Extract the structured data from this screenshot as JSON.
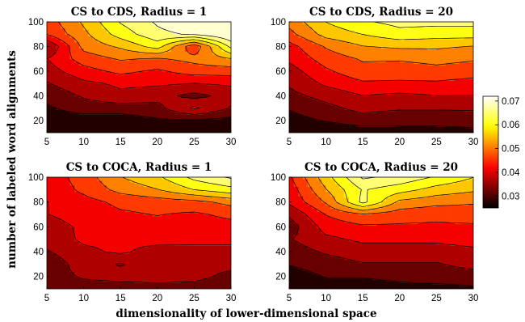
{
  "figure": {
    "xlabel": "dimensionality of lower-dimensional space",
    "ylabel": "number of labeled word alignments"
  },
  "colorbar": {
    "ticks": [
      "0.07",
      "0.06",
      "0.05",
      "0.04",
      "0.03"
    ],
    "tick_values": [
      0.07,
      0.06,
      0.05,
      0.04,
      0.03
    ],
    "range": [
      0.025,
      0.072
    ],
    "colormap": "hot"
  },
  "chart_data": [
    {
      "type": "heatmap",
      "title": "CS to CDS, Radius = 1",
      "x": [
        5,
        10,
        15,
        20,
        25,
        30
      ],
      "y": [
        10,
        20,
        30,
        40,
        50,
        60,
        70,
        80,
        90,
        100
      ],
      "xlim": [
        5,
        30
      ],
      "ylim": [
        10,
        100
      ],
      "xticks": [
        5,
        10,
        15,
        20,
        25,
        30
      ],
      "yticks": [
        20,
        40,
        60,
        80,
        100
      ],
      "z": [
        [
          0.026,
          0.026,
          0.026,
          0.027,
          0.027,
          0.027
        ],
        [
          0.027,
          0.027,
          0.027,
          0.029,
          0.029,
          0.028
        ],
        [
          0.029,
          0.032,
          0.032,
          0.033,
          0.04,
          0.034
        ],
        [
          0.031,
          0.035,
          0.038,
          0.036,
          0.033,
          0.036
        ],
        [
          0.034,
          0.038,
          0.04,
          0.04,
          0.039,
          0.04
        ],
        [
          0.037,
          0.042,
          0.045,
          0.043,
          0.046,
          0.046
        ],
        [
          0.039,
          0.046,
          0.049,
          0.048,
          0.05,
          0.053
        ],
        [
          0.034,
          0.05,
          0.054,
          0.06,
          0.045,
          0.064
        ],
        [
          0.044,
          0.052,
          0.06,
          0.066,
          0.068,
          0.072
        ],
        [
          0.046,
          0.054,
          0.063,
          0.068,
          0.072,
          0.072
        ]
      ]
    },
    {
      "type": "heatmap",
      "title": "CS to CDS, Radius = 20",
      "x": [
        5,
        10,
        15,
        20,
        25,
        30
      ],
      "y": [
        10,
        20,
        30,
        40,
        50,
        60,
        70,
        80,
        90,
        100
      ],
      "xlim": [
        5,
        30
      ],
      "ylim": [
        10,
        100
      ],
      "xticks": [
        5,
        10,
        15,
        20,
        25,
        30
      ],
      "yticks": [
        20,
        40,
        60,
        80,
        100
      ],
      "z": [
        [
          0.026,
          0.026,
          0.027,
          0.028,
          0.028,
          0.028
        ],
        [
          0.028,
          0.03,
          0.032,
          0.031,
          0.031,
          0.032
        ],
        [
          0.03,
          0.033,
          0.036,
          0.035,
          0.035,
          0.035
        ],
        [
          0.033,
          0.036,
          0.039,
          0.038,
          0.039,
          0.039
        ],
        [
          0.035,
          0.04,
          0.043,
          0.043,
          0.043,
          0.042
        ],
        [
          0.037,
          0.043,
          0.047,
          0.046,
          0.047,
          0.046
        ],
        [
          0.04,
          0.046,
          0.049,
          0.049,
          0.05,
          0.049
        ],
        [
          0.042,
          0.049,
          0.053,
          0.054,
          0.054,
          0.053
        ],
        [
          0.047,
          0.055,
          0.058,
          0.061,
          0.06,
          0.06
        ],
        [
          0.05,
          0.058,
          0.062,
          0.064,
          0.064,
          0.064
        ]
      ]
    },
    {
      "type": "heatmap",
      "title": "CS to COCA, Radius = 1",
      "x": [
        5,
        10,
        15,
        20,
        25,
        30
      ],
      "y": [
        10,
        20,
        30,
        40,
        50,
        60,
        70,
        80,
        90,
        100
      ],
      "xlim": [
        5,
        30
      ],
      "ylim": [
        10,
        100
      ],
      "xticks": [
        5,
        10,
        15,
        20,
        25,
        30
      ],
      "yticks": [
        20,
        40,
        60,
        80,
        100
      ],
      "z": [
        [
          0.031,
          0.032,
          0.032,
          0.033,
          0.032,
          0.03
        ],
        [
          0.032,
          0.035,
          0.036,
          0.036,
          0.036,
          0.033
        ],
        [
          0.031,
          0.037,
          0.034,
          0.038,
          0.035,
          0.036
        ],
        [
          0.034,
          0.038,
          0.04,
          0.037,
          0.038,
          0.038
        ],
        [
          0.036,
          0.04,
          0.04,
          0.041,
          0.04,
          0.04
        ],
        [
          0.037,
          0.04,
          0.041,
          0.042,
          0.041,
          0.042
        ],
        [
          0.039,
          0.041,
          0.043,
          0.044,
          0.043,
          0.045
        ],
        [
          0.039,
          0.042,
          0.045,
          0.046,
          0.047,
          0.05
        ],
        [
          0.04,
          0.045,
          0.05,
          0.053,
          0.058,
          0.061
        ],
        [
          0.041,
          0.046,
          0.053,
          0.057,
          0.064,
          0.068
        ]
      ]
    },
    {
      "type": "heatmap",
      "title": "CS to COCA, Radius = 20",
      "x": [
        5,
        10,
        15,
        20,
        25,
        30
      ],
      "y": [
        10,
        20,
        30,
        40,
        50,
        60,
        70,
        80,
        90,
        100
      ],
      "xlim": [
        5,
        30
      ],
      "ylim": [
        10,
        100
      ],
      "xticks": [
        5,
        10,
        15,
        20,
        25,
        30
      ],
      "yticks": [
        20,
        40,
        60,
        80,
        100
      ],
      "z": [
        [
          0.026,
          0.027,
          0.027,
          0.028,
          0.028,
          0.029
        ],
        [
          0.027,
          0.03,
          0.03,
          0.031,
          0.032,
          0.032
        ],
        [
          0.03,
          0.032,
          0.034,
          0.034,
          0.034,
          0.036
        ],
        [
          0.032,
          0.035,
          0.037,
          0.037,
          0.037,
          0.038
        ],
        [
          0.034,
          0.038,
          0.04,
          0.04,
          0.04,
          0.041
        ],
        [
          0.032,
          0.041,
          0.043,
          0.043,
          0.043,
          0.043
        ],
        [
          0.035,
          0.044,
          0.048,
          0.046,
          0.045,
          0.046
        ],
        [
          0.04,
          0.049,
          0.064,
          0.052,
          0.05,
          0.049
        ],
        [
          0.041,
          0.053,
          0.063,
          0.06,
          0.056,
          0.054
        ],
        [
          0.043,
          0.056,
          0.068,
          0.066,
          0.062,
          0.058
        ]
      ]
    }
  ]
}
